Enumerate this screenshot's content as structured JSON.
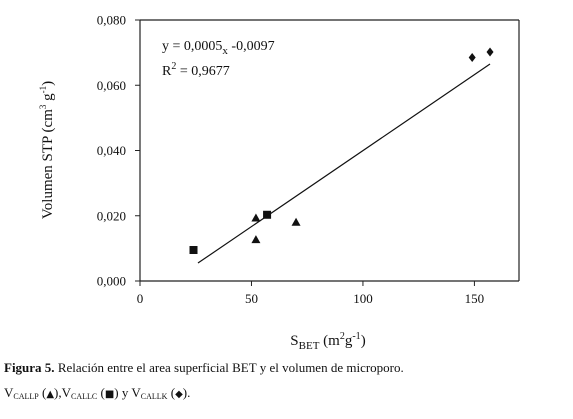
{
  "chart_data": {
    "type": "scatter",
    "xlim": [
      0,
      170
    ],
    "ylim": [
      0,
      0.08
    ],
    "x_ticks": [
      {
        "value": 0,
        "label": "0"
      },
      {
        "value": 50,
        "label": "50"
      },
      {
        "value": 100,
        "label": "100"
      },
      {
        "value": 150,
        "label": "150"
      }
    ],
    "y_ticks": [
      {
        "value": 0.0,
        "label": "0,000"
      },
      {
        "value": 0.02,
        "label": "0,020"
      },
      {
        "value": 0.04,
        "label": "0,040"
      },
      {
        "value": 0.06,
        "label": "0,060"
      },
      {
        "value": 0.08,
        "label": "0,080"
      }
    ],
    "ylabel": {
      "main": "Volumen STP (cm",
      "sup1": "3",
      "mid": " g",
      "sup2": "-1",
      "end": ")"
    },
    "xlabel": {
      "s": "S",
      "sub": "BET",
      "mid": " (m",
      "sup1": "2",
      "g": "g",
      "sup2": "-1",
      "end": ")"
    },
    "series": [
      {
        "marker": "triangle",
        "points": [
          [
            52,
            0.0193
          ],
          [
            52,
            0.0127
          ],
          [
            70,
            0.018
          ]
        ]
      },
      {
        "marker": "square",
        "points": [
          [
            24,
            0.0095
          ],
          [
            57,
            0.0203
          ]
        ]
      },
      {
        "marker": "diamond",
        "points": [
          [
            149,
            0.0685
          ],
          [
            157,
            0.0702
          ]
        ]
      }
    ],
    "trendline": {
      "x": [
        26,
        157
      ],
      "y": [
        0.0055,
        0.0665
      ]
    },
    "equation": {
      "main": "y = 0,0005",
      "x": "x",
      "tail": " -0,0097"
    },
    "r2": {
      "r": "R",
      "sup": "2",
      "value": " = 0,9677"
    },
    "grid": false,
    "legend": "none",
    "colors": {
      "marks": "#111111",
      "axes": "#222222"
    }
  },
  "caption": {
    "figure_label": "Figura 5.",
    "figure_text": " Relación entre el area superficial BET y el volumen de microporo.",
    "items": [
      {
        "v": "V",
        "sub": "CALLP",
        "open": " (",
        "glyph": "▲",
        "close": "),"
      },
      {
        "v": "V",
        "sub": "CALLC",
        "open": " (",
        "glyph": "■",
        "close": ") y "
      },
      {
        "v": "V",
        "sub": "CALLK",
        "open": " (",
        "glyph": "◆",
        "close": ")."
      }
    ]
  }
}
